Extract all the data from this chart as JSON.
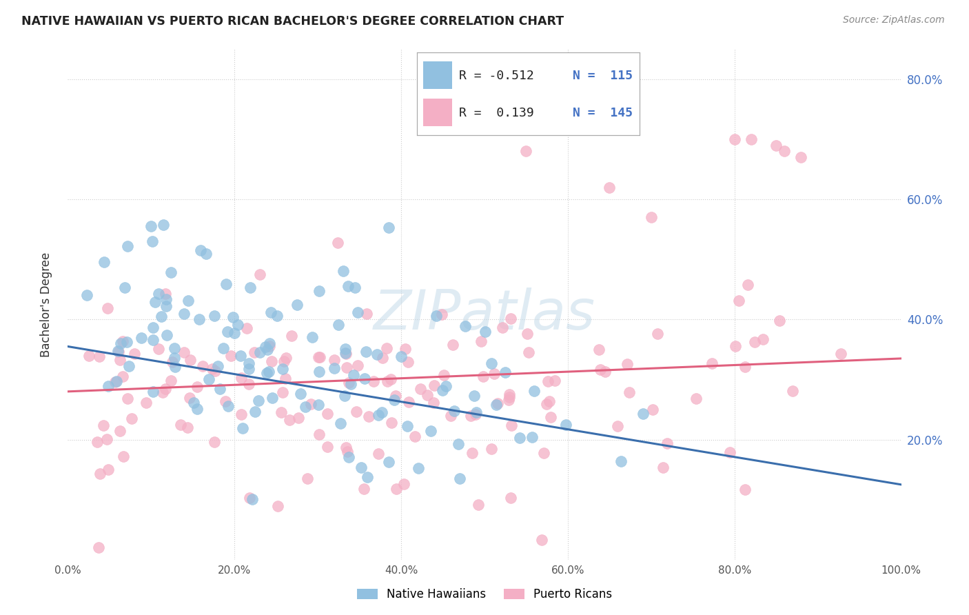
{
  "title": "NATIVE HAWAIIAN VS PUERTO RICAN BACHELOR'S DEGREE CORRELATION CHART",
  "source": "Source: ZipAtlas.com",
  "ylabel": "Bachelor's Degree",
  "watermark": "ZIPatlas",
  "blue_R": -0.512,
  "blue_N": 115,
  "pink_R": 0.139,
  "pink_N": 145,
  "blue_color": "#91c0e0",
  "pink_color": "#f4afc5",
  "blue_line_color": "#3a6eac",
  "pink_line_color": "#e0607e",
  "bg_color": "#ffffff",
  "grid_color": "#cccccc",
  "xlim": [
    0.0,
    1.0
  ],
  "ylim": [
    0.0,
    0.85
  ],
  "blue_line_x0": 0.0,
  "blue_line_y0": 0.355,
  "blue_line_x1": 1.0,
  "blue_line_y1": 0.125,
  "pink_line_x0": 0.0,
  "pink_line_y0": 0.28,
  "pink_line_x1": 1.0,
  "pink_line_y1": 0.335,
  "legend_R_blue": "R = -0.512",
  "legend_N_blue": "N = 115",
  "legend_R_pink": "R =  0.139",
  "legend_N_pink": "N = 145",
  "ytick_right_labels": [
    "20.0%",
    "40.0%",
    "60.0%",
    "80.0%"
  ],
  "ytick_right_positions": [
    0.2,
    0.4,
    0.6,
    0.8
  ],
  "xtick_labels": [
    "0.0%",
    "20.0%",
    "40.0%",
    "60.0%",
    "80.0%",
    "100.0%"
  ],
  "xtick_positions": [
    0.0,
    0.2,
    0.4,
    0.6,
    0.8,
    1.0
  ]
}
